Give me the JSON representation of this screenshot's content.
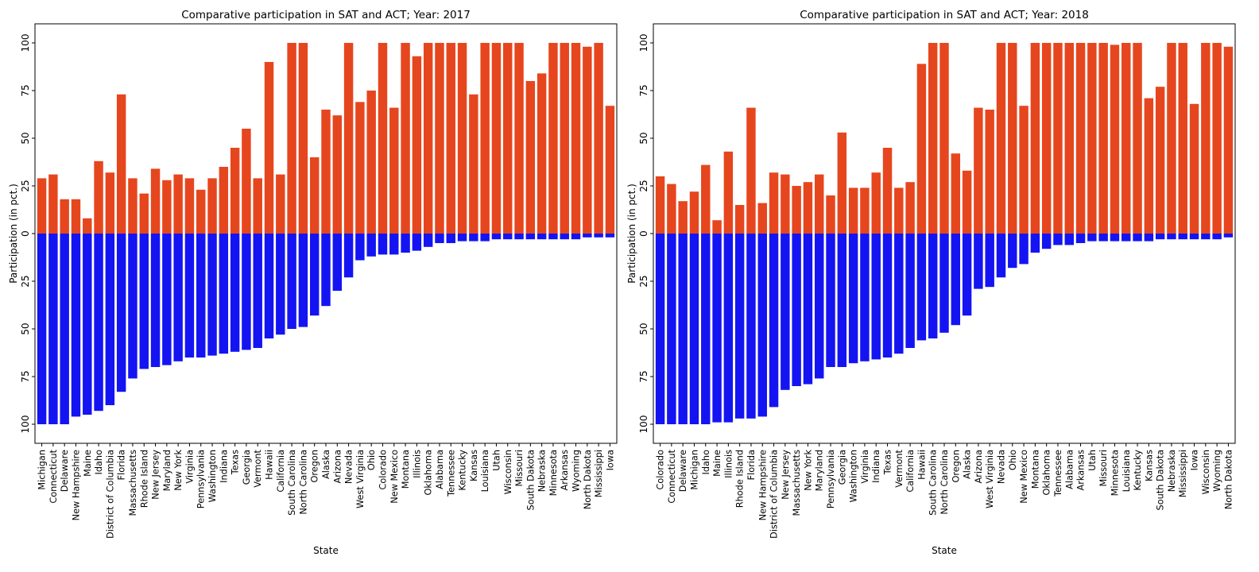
{
  "colors": {
    "sat": "#E6461E",
    "act": "#1414F2",
    "frame": "#000000"
  },
  "chart_data": [
    {
      "type": "bar",
      "title": "Comparative participation in SAT and ACT; Year: 2017",
      "xlabel": "State",
      "ylabel": "Participation (in pct.)",
      "ylim": [
        -110,
        110
      ],
      "yticks": [
        100,
        75,
        50,
        25,
        0,
        25,
        50,
        75,
        100
      ],
      "grid": false,
      "categories": [
        "Michigan",
        "Connecticut",
        "Delaware",
        "New Hampshire",
        "Maine",
        "Idaho",
        "District of Columbia",
        "Florida",
        "Massachusetts",
        "Rhode Island",
        "New Jersey",
        "Maryland",
        "New York",
        "Virginia",
        "Pennsylvania",
        "Washington",
        "Indiana",
        "Texas",
        "Georgia",
        "Vermont",
        "Hawaii",
        "California",
        "South Carolina",
        "North Carolina",
        "Oregon",
        "Alaska",
        "Arizona",
        "Nevada",
        "West Virginia",
        "Ohio",
        "Colorado",
        "New Mexico",
        "Montana",
        "Illinois",
        "Oklahoma",
        "Alabama",
        "Tennessee",
        "Kentucky",
        "Kansas",
        "Louisiana",
        "Utah",
        "Wisconsin",
        "Missouri",
        "South Dakota",
        "Nebraska",
        "Minnesota",
        "Arkansas",
        "Wyoming",
        "North Dakota",
        "Mississippi",
        "Iowa"
      ],
      "series": [
        {
          "values": [
            29,
            31,
            18,
            18,
            8,
            38,
            32,
            73,
            29,
            21,
            34,
            28,
            31,
            29,
            23,
            29,
            35,
            45,
            55,
            29,
            90,
            31,
            100,
            100,
            40,
            65,
            62,
            100,
            69,
            75,
            100,
            66,
            100,
            93,
            100,
            100,
            100,
            100,
            73,
            100,
            100,
            100,
            100,
            80,
            84,
            100,
            100,
            100,
            98,
            100,
            67
          ]
        },
        {
          "values": [
            100,
            100,
            100,
            96,
            95,
            93,
            90,
            83,
            76,
            71,
            70,
            69,
            67,
            65,
            65,
            64,
            63,
            62,
            61,
            60,
            55,
            53,
            50,
            49,
            43,
            38,
            30,
            23,
            14,
            12,
            11,
            11,
            10,
            9,
            7,
            5,
            5,
            4,
            4,
            4,
            3,
            3,
            3,
            3,
            3,
            3,
            3,
            3,
            2,
            2,
            2
          ]
        }
      ]
    },
    {
      "type": "bar",
      "title": "Comparative participation in SAT and ACT; Year: 2018",
      "xlabel": "State",
      "ylabel": "Participation (in pct.)",
      "ylim": [
        -110,
        110
      ],
      "yticks": [
        100,
        75,
        50,
        25,
        0,
        25,
        50,
        75,
        100
      ],
      "grid": false,
      "categories": [
        "Colorado",
        "Connecticut",
        "Delaware",
        "Michigan",
        "Idaho",
        "Maine",
        "Illinois",
        "Rhode Island",
        "Florida",
        "New Hampshire",
        "District of Columbia",
        "New Jersey",
        "Massachusetts",
        "New York",
        "Maryland",
        "Pennsylvania",
        "Georgia",
        "Washington",
        "Virginia",
        "Indiana",
        "Texas",
        "Vermont",
        "California",
        "Hawaii",
        "South Carolina",
        "North Carolina",
        "Oregon",
        "Alaska",
        "Arizona",
        "West Virginia",
        "Nevada",
        "Ohio",
        "New Mexico",
        "Montana",
        "Oklahoma",
        "Tennessee",
        "Alabama",
        "Arkansas",
        "Utah",
        "Missouri",
        "Minnesota",
        "Louisiana",
        "Kentucky",
        "Kansas",
        "South Dakota",
        "Nebraska",
        "Mississippi",
        "Iowa",
        "Wisconsin",
        "Wyoming",
        "North Dakota"
      ],
      "series": [
        {
          "values": [
            30,
            26,
            17,
            22,
            36,
            7,
            43,
            15,
            66,
            16,
            32,
            31,
            25,
            27,
            31,
            20,
            53,
            24,
            24,
            32,
            45,
            24,
            27,
            89,
            100,
            100,
            42,
            33,
            66,
            65,
            100,
            100,
            67,
            100,
            100,
            100,
            100,
            100,
            100,
            100,
            99,
            100,
            100,
            71,
            77,
            100,
            100,
            68,
            100,
            100,
            98
          ]
        },
        {
          "values": [
            100,
            100,
            100,
            100,
            100,
            99,
            99,
            97,
            97,
            96,
            91,
            82,
            80,
            79,
            76,
            70,
            70,
            68,
            67,
            66,
            65,
            63,
            60,
            56,
            55,
            52,
            48,
            43,
            29,
            28,
            23,
            18,
            16,
            10,
            8,
            6,
            6,
            5,
            4,
            4,
            4,
            4,
            4,
            4,
            3,
            3,
            3,
            3,
            3,
            3,
            2
          ]
        }
      ]
    }
  ]
}
